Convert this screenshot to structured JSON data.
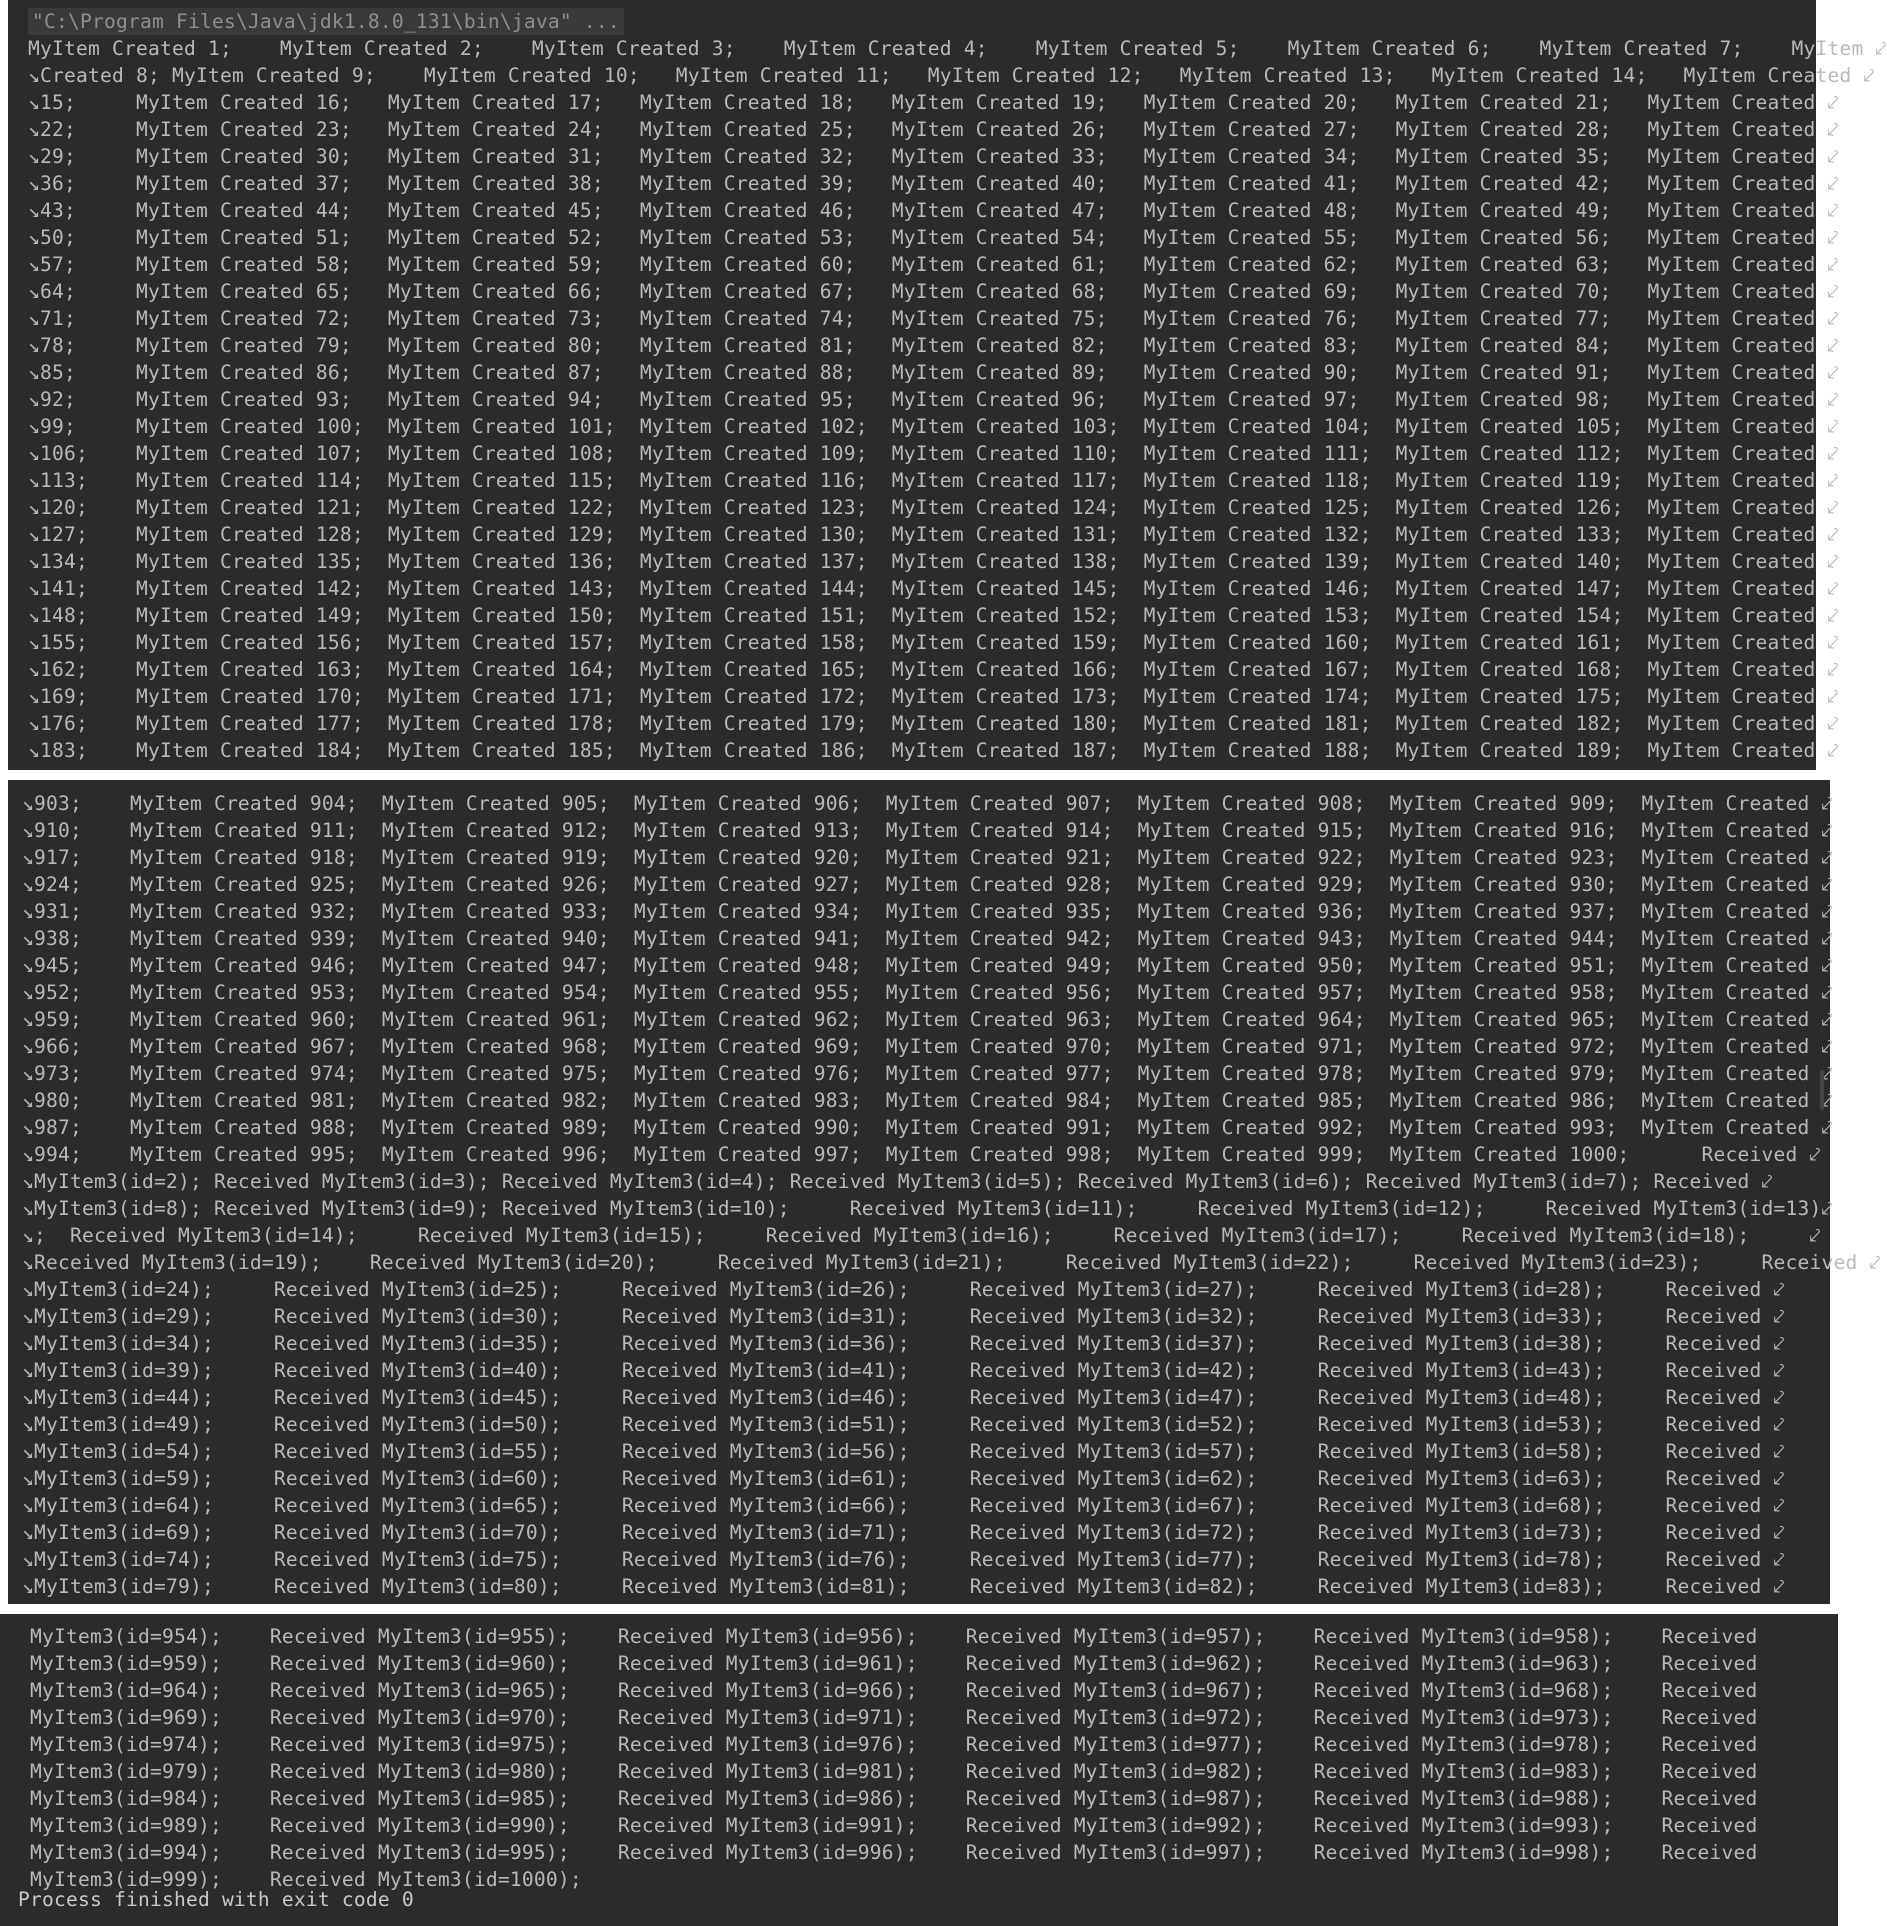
{
  "console": {
    "command": "\"C:\\Program Files\\Java\\jdk1.8.0_131\\bin\\java\" ...",
    "panel1_lines": [
      "MyItem Created 1;    MyItem Created 2;    MyItem Created 3;    MyItem Created 4;    MyItem Created 5;    MyItem Created 6;    MyItem Created 7;    MyItem ⤦",
      "↘Created 8; MyItem Created 9;    MyItem Created 10;   MyItem Created 11;   MyItem Created 12;   MyItem Created 13;   MyItem Created 14;   MyItem Created ⤦",
      "↘15;     MyItem Created 16;   MyItem Created 17;   MyItem Created 18;   MyItem Created 19;   MyItem Created 20;   MyItem Created 21;   MyItem Created ⤦",
      "↘22;     MyItem Created 23;   MyItem Created 24;   MyItem Created 25;   MyItem Created 26;   MyItem Created 27;   MyItem Created 28;   MyItem Created ⤦",
      "↘29;     MyItem Created 30;   MyItem Created 31;   MyItem Created 32;   MyItem Created 33;   MyItem Created 34;   MyItem Created 35;   MyItem Created ⤦",
      "↘36;     MyItem Created 37;   MyItem Created 38;   MyItem Created 39;   MyItem Created 40;   MyItem Created 41;   MyItem Created 42;   MyItem Created ⤦",
      "↘43;     MyItem Created 44;   MyItem Created 45;   MyItem Created 46;   MyItem Created 47;   MyItem Created 48;   MyItem Created 49;   MyItem Created ⤦",
      "↘50;     MyItem Created 51;   MyItem Created 52;   MyItem Created 53;   MyItem Created 54;   MyItem Created 55;   MyItem Created 56;   MyItem Created ⤦",
      "↘57;     MyItem Created 58;   MyItem Created 59;   MyItem Created 60;   MyItem Created 61;   MyItem Created 62;   MyItem Created 63;   MyItem Created ⤦",
      "↘64;     MyItem Created 65;   MyItem Created 66;   MyItem Created 67;   MyItem Created 68;   MyItem Created 69;   MyItem Created 70;   MyItem Created ⤦",
      "↘71;     MyItem Created 72;   MyItem Created 73;   MyItem Created 74;   MyItem Created 75;   MyItem Created 76;   MyItem Created 77;   MyItem Created ⤦",
      "↘78;     MyItem Created 79;   MyItem Created 80;   MyItem Created 81;   MyItem Created 82;   MyItem Created 83;   MyItem Created 84;   MyItem Created ⤦",
      "↘85;     MyItem Created 86;   MyItem Created 87;   MyItem Created 88;   MyItem Created 89;   MyItem Created 90;   MyItem Created 91;   MyItem Created ⤦",
      "↘92;     MyItem Created 93;   MyItem Created 94;   MyItem Created 95;   MyItem Created 96;   MyItem Created 97;   MyItem Created 98;   MyItem Created ⤦",
      "↘99;     MyItem Created 100;  MyItem Created 101;  MyItem Created 102;  MyItem Created 103;  MyItem Created 104;  MyItem Created 105;  MyItem Created ⤦",
      "↘106;    MyItem Created 107;  MyItem Created 108;  MyItem Created 109;  MyItem Created 110;  MyItem Created 111;  MyItem Created 112;  MyItem Created ⤦",
      "↘113;    MyItem Created 114;  MyItem Created 115;  MyItem Created 116;  MyItem Created 117;  MyItem Created 118;  MyItem Created 119;  MyItem Created ⤦",
      "↘120;    MyItem Created 121;  MyItem Created 122;  MyItem Created 123;  MyItem Created 124;  MyItem Created 125;  MyItem Created 126;  MyItem Created ⤦",
      "↘127;    MyItem Created 128;  MyItem Created 129;  MyItem Created 130;  MyItem Created 131;  MyItem Created 132;  MyItem Created 133;  MyItem Created ⤦",
      "↘134;    MyItem Created 135;  MyItem Created 136;  MyItem Created 137;  MyItem Created 138;  MyItem Created 139;  MyItem Created 140;  MyItem Created ⤦",
      "↘141;    MyItem Created 142;  MyItem Created 143;  MyItem Created 144;  MyItem Created 145;  MyItem Created 146;  MyItem Created 147;  MyItem Created ⤦",
      "↘148;    MyItem Created 149;  MyItem Created 150;  MyItem Created 151;  MyItem Created 152;  MyItem Created 153;  MyItem Created 154;  MyItem Created ⤦",
      "↘155;    MyItem Created 156;  MyItem Created 157;  MyItem Created 158;  MyItem Created 159;  MyItem Created 160;  MyItem Created 161;  MyItem Created ⤦",
      "↘162;    MyItem Created 163;  MyItem Created 164;  MyItem Created 165;  MyItem Created 166;  MyItem Created 167;  MyItem Created 168;  MyItem Created ⤦",
      "↘169;    MyItem Created 170;  MyItem Created 171;  MyItem Created 172;  MyItem Created 173;  MyItem Created 174;  MyItem Created 175;  MyItem Created ⤦",
      "↘176;    MyItem Created 177;  MyItem Created 178;  MyItem Created 179;  MyItem Created 180;  MyItem Created 181;  MyItem Created 182;  MyItem Created ⤦",
      "↘183;    MyItem Created 184;  MyItem Created 185;  MyItem Created 186;  MyItem Created 187;  MyItem Created 188;  MyItem Created 189;  MyItem Created ⤦"
    ],
    "panel2_lines": [
      "↘903;    MyItem Created 904;  MyItem Created 905;  MyItem Created 906;  MyItem Created 907;  MyItem Created 908;  MyItem Created 909;  MyItem Created ⤦",
      "↘910;    MyItem Created 911;  MyItem Created 912;  MyItem Created 913;  MyItem Created 914;  MyItem Created 915;  MyItem Created 916;  MyItem Created ⤦",
      "↘917;    MyItem Created 918;  MyItem Created 919;  MyItem Created 920;  MyItem Created 921;  MyItem Created 922;  MyItem Created 923;  MyItem Created ⤦",
      "↘924;    MyItem Created 925;  MyItem Created 926;  MyItem Created 927;  MyItem Created 928;  MyItem Created 929;  MyItem Created 930;  MyItem Created ⤦",
      "↘931;    MyItem Created 932;  MyItem Created 933;  MyItem Created 934;  MyItem Created 935;  MyItem Created 936;  MyItem Created 937;  MyItem Created ⤦",
      "↘938;    MyItem Created 939;  MyItem Created 940;  MyItem Created 941;  MyItem Created 942;  MyItem Created 943;  MyItem Created 944;  MyItem Created ⤦",
      "↘945;    MyItem Created 946;  MyItem Created 947;  MyItem Created 948;  MyItem Created 949;  MyItem Created 950;  MyItem Created 951;  MyItem Created ⤦",
      "↘952;    MyItem Created 953;  MyItem Created 954;  MyItem Created 955;  MyItem Created 956;  MyItem Created 957;  MyItem Created 958;  MyItem Created ⤦",
      "↘959;    MyItem Created 960;  MyItem Created 961;  MyItem Created 962;  MyItem Created 963;  MyItem Created 964;  MyItem Created 965;  MyItem Created ⤦",
      "↘966;    MyItem Created 967;  MyItem Created 968;  MyItem Created 969;  MyItem Created 970;  MyItem Created 971;  MyItem Created 972;  MyItem Created ⤦",
      "↘973;    MyItem Created 974;  MyItem Created 975;  MyItem Created 976;  MyItem Created 977;  MyItem Created 978;  MyItem Created 979;  MyItem Created ⤦",
      "↘980;    MyItem Created 981;  MyItem Created 982;  MyItem Created 983;  MyItem Created 984;  MyItem Created 985;  MyItem Created 986;  MyItem Created ⤦",
      "↘987;    MyItem Created 988;  MyItem Created 989;  MyItem Created 990;  MyItem Created 991;  MyItem Created 992;  MyItem Created 993;  MyItem Created ⤦",
      "↘994;    MyItem Created 995;  MyItem Created 996;  MyItem Created 997;  MyItem Created 998;  MyItem Created 999;  MyItem Created 1000;      Received ⤦",
      "↘MyItem3(id=2); Received MyItem3(id=3); Received MyItem3(id=4); Received MyItem3(id=5); Received MyItem3(id=6); Received MyItem3(id=7); Received ⤦",
      "↘MyItem3(id=8); Received MyItem3(id=9); Received MyItem3(id=10);     Received MyItem3(id=11);     Received MyItem3(id=12);     Received MyItem3(id=13)⤦",
      "↘;  Received MyItem3(id=14);     Received MyItem3(id=15);     Received MyItem3(id=16);     Received MyItem3(id=17);     Received MyItem3(id=18);     ⤦",
      "↘Received MyItem3(id=19);    Received MyItem3(id=20);     Received MyItem3(id=21);     Received MyItem3(id=22);     Received MyItem3(id=23);     Received ⤦",
      "↘MyItem3(id=24);     Received MyItem3(id=25);     Received MyItem3(id=26);     Received MyItem3(id=27);     Received MyItem3(id=28);     Received ⤦",
      "↘MyItem3(id=29);     Received MyItem3(id=30);     Received MyItem3(id=31);     Received MyItem3(id=32);     Received MyItem3(id=33);     Received ⤦",
      "↘MyItem3(id=34);     Received MyItem3(id=35);     Received MyItem3(id=36);     Received MyItem3(id=37);     Received MyItem3(id=38);     Received ⤦",
      "↘MyItem3(id=39);     Received MyItem3(id=40);     Received MyItem3(id=41);     Received MyItem3(id=42);     Received MyItem3(id=43);     Received ⤦",
      "↘MyItem3(id=44);     Received MyItem3(id=45);     Received MyItem3(id=46);     Received MyItem3(id=47);     Received MyItem3(id=48);     Received ⤦",
      "↘MyItem3(id=49);     Received MyItem3(id=50);     Received MyItem3(id=51);     Received MyItem3(id=52);     Received MyItem3(id=53);     Received ⤦",
      "↘MyItem3(id=54);     Received MyItem3(id=55);     Received MyItem3(id=56);     Received MyItem3(id=57);     Received MyItem3(id=58);     Received ⤦",
      "↘MyItem3(id=59);     Received MyItem3(id=60);     Received MyItem3(id=61);     Received MyItem3(id=62);     Received MyItem3(id=63);     Received ⤦",
      "↘MyItem3(id=64);     Received MyItem3(id=65);     Received MyItem3(id=66);     Received MyItem3(id=67);     Received MyItem3(id=68);     Received ⤦",
      "↘MyItem3(id=69);     Received MyItem3(id=70);     Received MyItem3(id=71);     Received MyItem3(id=72);     Received MyItem3(id=73);     Received ⤦",
      "↘MyItem3(id=74);     Received MyItem3(id=75);     Received MyItem3(id=76);     Received MyItem3(id=77);     Received MyItem3(id=78);     Received ⤦",
      "↘MyItem3(id=79);     Received MyItem3(id=80);     Received MyItem3(id=81);     Received MyItem3(id=82);     Received MyItem3(id=83);     Received ⤦"
    ],
    "panel3_lines": [
      "MyItem3(id=954);    Received MyItem3(id=955);    Received MyItem3(id=956);    Received MyItem3(id=957);    Received MyItem3(id=958);    Received",
      "MyItem3(id=959);    Received MyItem3(id=960);    Received MyItem3(id=961);    Received MyItem3(id=962);    Received MyItem3(id=963);    Received",
      "MyItem3(id=964);    Received MyItem3(id=965);    Received MyItem3(id=966);    Received MyItem3(id=967);    Received MyItem3(id=968);    Received",
      "MyItem3(id=969);    Received MyItem3(id=970);    Received MyItem3(id=971);    Received MyItem3(id=972);    Received MyItem3(id=973);    Received",
      "MyItem3(id=974);    Received MyItem3(id=975);    Received MyItem3(id=976);    Received MyItem3(id=977);    Received MyItem3(id=978);    Received",
      "MyItem3(id=979);    Received MyItem3(id=980);    Received MyItem3(id=981);    Received MyItem3(id=982);    Received MyItem3(id=983);    Received",
      "MyItem3(id=984);    Received MyItem3(id=985);    Received MyItem3(id=986);    Received MyItem3(id=987);    Received MyItem3(id=988);    Received",
      "MyItem3(id=989);    Received MyItem3(id=990);    Received MyItem3(id=991);    Received MyItem3(id=992);    Received MyItem3(id=993);    Received",
      "MyItem3(id=994);    Received MyItem3(id=995);    Received MyItem3(id=996);    Received MyItem3(id=997);    Received MyItem3(id=998);    Received",
      "MyItem3(id=999);    Received MyItem3(id=1000);"
    ],
    "exit_message": "Process finished with exit code 0"
  }
}
